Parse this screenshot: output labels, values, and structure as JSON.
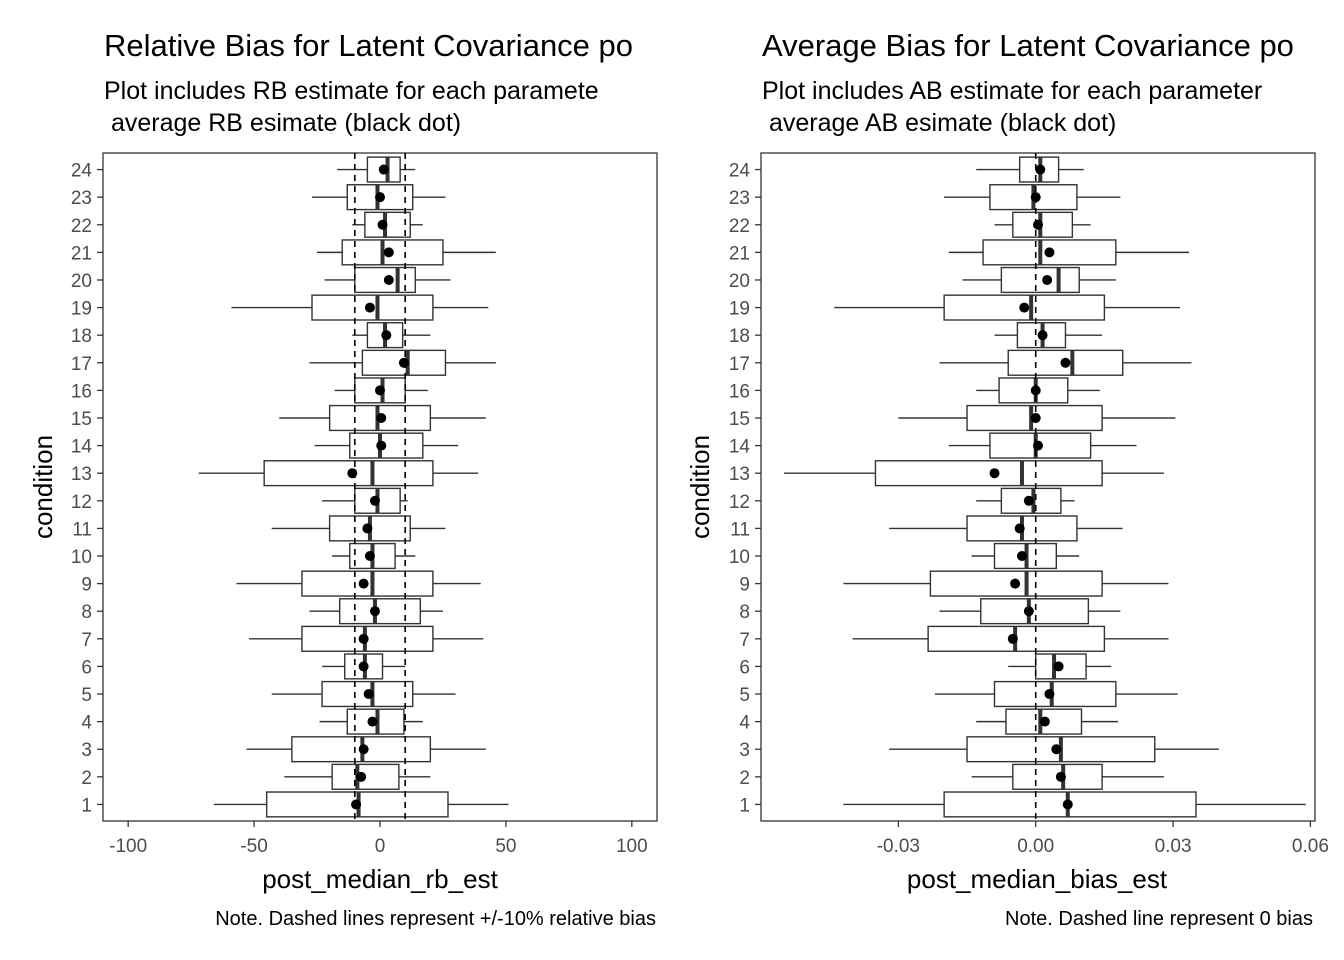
{
  "chart_data": [
    {
      "type": "boxplot",
      "title": "Relative Bias for Latent Covariance po",
      "subtitle_lines": [
        "Plot includes RB estimate for each paramete",
        " average RB esimate (black dot)"
      ],
      "xlabel": "post_median_rb_est",
      "ylabel": "condition",
      "caption": "Note. Dashed lines represent +/-10% relative bias",
      "xlim": [
        -110,
        110
      ],
      "x_ticks": [
        -100,
        -50,
        0,
        50,
        100
      ],
      "x_tick_labels": [
        "-100",
        "-50",
        "0",
        "50",
        "100"
      ],
      "reference_lines": [
        -10,
        10
      ],
      "categories": [
        "1",
        "2",
        "3",
        "4",
        "5",
        "6",
        "7",
        "8",
        "9",
        "10",
        "11",
        "12",
        "13",
        "14",
        "15",
        "16",
        "17",
        "18",
        "19",
        "20",
        "21",
        "22",
        "23",
        "24"
      ],
      "grid": false,
      "legend": "none",
      "boxes": [
        {
          "condition": "1",
          "lower_whisker": -66,
          "q1": -45,
          "median": -8.5,
          "q3": 27,
          "upper_whisker": 51,
          "mean": -9.5
        },
        {
          "condition": "2",
          "lower_whisker": -38,
          "q1": -19,
          "median": -9,
          "q3": 7.5,
          "upper_whisker": 20,
          "mean": -7.5
        },
        {
          "condition": "3",
          "lower_whisker": -53,
          "q1": -35,
          "median": -7,
          "q3": 20,
          "upper_whisker": 42,
          "mean": -6.5
        },
        {
          "condition": "4",
          "lower_whisker": -24,
          "q1": -13,
          "median": -1,
          "q3": 9.5,
          "upper_whisker": 17,
          "mean": -3
        },
        {
          "condition": "5",
          "lower_whisker": -43,
          "q1": -23,
          "median": -3,
          "q3": 13,
          "upper_whisker": 30,
          "mean": -4.5
        },
        {
          "condition": "6",
          "lower_whisker": -23,
          "q1": -14,
          "median": -6,
          "q3": 1,
          "upper_whisker": 10,
          "mean": -6.5
        },
        {
          "condition": "7",
          "lower_whisker": -52,
          "q1": -31,
          "median": -6,
          "q3": 21,
          "upper_whisker": 41,
          "mean": -6.5
        },
        {
          "condition": "8",
          "lower_whisker": -28,
          "q1": -16,
          "median": -2,
          "q3": 16,
          "upper_whisker": 25,
          "mean": -2
        },
        {
          "condition": "9",
          "lower_whisker": -57,
          "q1": -31,
          "median": -3,
          "q3": 21,
          "upper_whisker": 40,
          "mean": -6.5
        },
        {
          "condition": "10",
          "lower_whisker": -19,
          "q1": -12,
          "median": -3,
          "q3": 6,
          "upper_whisker": 14,
          "mean": -4
        },
        {
          "condition": "11",
          "lower_whisker": -43,
          "q1": -20,
          "median": -4,
          "q3": 12,
          "upper_whisker": 26,
          "mean": -5
        },
        {
          "condition": "12",
          "lower_whisker": -23,
          "q1": -10,
          "median": -1,
          "q3": 8,
          "upper_whisker": 11,
          "mean": -2
        },
        {
          "condition": "13",
          "lower_whisker": -72,
          "q1": -46,
          "median": -3,
          "q3": 21,
          "upper_whisker": 39,
          "mean": -11
        },
        {
          "condition": "14",
          "lower_whisker": -26,
          "q1": -12,
          "median": 0,
          "q3": 17,
          "upper_whisker": 31,
          "mean": 0.5
        },
        {
          "condition": "15",
          "lower_whisker": -40,
          "q1": -20,
          "median": -1,
          "q3": 20,
          "upper_whisker": 42,
          "mean": 0.5
        },
        {
          "condition": "16",
          "lower_whisker": -18,
          "q1": -10,
          "median": 1,
          "q3": 10,
          "upper_whisker": 19,
          "mean": 0
        },
        {
          "condition": "17",
          "lower_whisker": -28,
          "q1": -7,
          "median": 11,
          "q3": 26,
          "upper_whisker": 46,
          "mean": 9.5
        },
        {
          "condition": "18",
          "lower_whisker": -11,
          "q1": -5,
          "median": 2,
          "q3": 9,
          "upper_whisker": 20,
          "mean": 2.5
        },
        {
          "condition": "19",
          "lower_whisker": -59,
          "q1": -27,
          "median": -1,
          "q3": 21,
          "upper_whisker": 43,
          "mean": -4
        },
        {
          "condition": "20",
          "lower_whisker": -22,
          "q1": -10,
          "median": 7,
          "q3": 14,
          "upper_whisker": 28,
          "mean": 3.5
        },
        {
          "condition": "21",
          "lower_whisker": -25,
          "q1": -15,
          "median": 1,
          "q3": 25,
          "upper_whisker": 46,
          "mean": 3.5
        },
        {
          "condition": "22",
          "lower_whisker": -11,
          "q1": -6,
          "median": 2,
          "q3": 12,
          "upper_whisker": 17,
          "mean": 1
        },
        {
          "condition": "23",
          "lower_whisker": -27,
          "q1": -13,
          "median": -1,
          "q3": 13,
          "upper_whisker": 26,
          "mean": 0
        },
        {
          "condition": "24",
          "lower_whisker": -17,
          "q1": -5,
          "median": 3,
          "q3": 8,
          "upper_whisker": 14,
          "mean": 1.5
        }
      ]
    },
    {
      "type": "boxplot",
      "title": "Average Bias for Latent Covariance po",
      "subtitle_lines": [
        "Plot includes AB estimate for each parameter",
        " average AB esimate (black dot)"
      ],
      "xlabel": "post_median_bias_est",
      "ylabel": "condition",
      "caption": "Note. Dashed line represent 0 bias",
      "xlim": [
        -0.06,
        0.061
      ],
      "x_ticks": [
        -0.03,
        0.0,
        0.03,
        0.06
      ],
      "x_tick_labels": [
        "-0.03",
        "0.00",
        "0.03",
        "0.06"
      ],
      "reference_lines": [
        0
      ],
      "categories": [
        "1",
        "2",
        "3",
        "4",
        "5",
        "6",
        "7",
        "8",
        "9",
        "10",
        "11",
        "12",
        "13",
        "14",
        "15",
        "16",
        "17",
        "18",
        "19",
        "20",
        "21",
        "22",
        "23",
        "24"
      ],
      "grid": false,
      "legend": "none",
      "boxes": [
        {
          "condition": "1",
          "lower_whisker": -0.042,
          "q1": -0.02,
          "median": 0.007,
          "q3": 0.035,
          "upper_whisker": 0.059,
          "mean": 0.007
        },
        {
          "condition": "2",
          "lower_whisker": -0.014,
          "q1": -0.005,
          "median": 0.006,
          "q3": 0.0145,
          "upper_whisker": 0.028,
          "mean": 0.0055
        },
        {
          "condition": "3",
          "lower_whisker": -0.032,
          "q1": -0.015,
          "median": 0.0055,
          "q3": 0.026,
          "upper_whisker": 0.04,
          "mean": 0.0045
        },
        {
          "condition": "4",
          "lower_whisker": -0.013,
          "q1": -0.0065,
          "median": 0.001,
          "q3": 0.01,
          "upper_whisker": 0.018,
          "mean": 0.002
        },
        {
          "condition": "5",
          "lower_whisker": -0.022,
          "q1": -0.009,
          "median": 0.0035,
          "q3": 0.0175,
          "upper_whisker": 0.031,
          "mean": 0.003
        },
        {
          "condition": "6",
          "lower_whisker": -0.006,
          "q1": 0.0,
          "median": 0.004,
          "q3": 0.011,
          "upper_whisker": 0.0165,
          "mean": 0.005
        },
        {
          "condition": "7",
          "lower_whisker": -0.04,
          "q1": -0.0235,
          "median": -0.0045,
          "q3": 0.015,
          "upper_whisker": 0.029,
          "mean": -0.005
        },
        {
          "condition": "8",
          "lower_whisker": -0.021,
          "q1": -0.012,
          "median": -0.0015,
          "q3": 0.0115,
          "upper_whisker": 0.0185,
          "mean": -0.0015
        },
        {
          "condition": "9",
          "lower_whisker": -0.042,
          "q1": -0.023,
          "median": -0.002,
          "q3": 0.0145,
          "upper_whisker": 0.029,
          "mean": -0.0045
        },
        {
          "condition": "10",
          "lower_whisker": -0.014,
          "q1": -0.009,
          "median": -0.002,
          "q3": 0.0045,
          "upper_whisker": 0.0095,
          "mean": -0.003
        },
        {
          "condition": "11",
          "lower_whisker": -0.032,
          "q1": -0.015,
          "median": -0.003,
          "q3": 0.009,
          "upper_whisker": 0.019,
          "mean": -0.0035
        },
        {
          "condition": "12",
          "lower_whisker": -0.013,
          "q1": -0.0075,
          "median": -0.0005,
          "q3": 0.0055,
          "upper_whisker": 0.0085,
          "mean": -0.0015
        },
        {
          "condition": "13",
          "lower_whisker": -0.055,
          "q1": -0.035,
          "median": -0.003,
          "q3": 0.0145,
          "upper_whisker": 0.028,
          "mean": -0.009
        },
        {
          "condition": "14",
          "lower_whisker": -0.019,
          "q1": -0.01,
          "median": 0.0,
          "q3": 0.012,
          "upper_whisker": 0.022,
          "mean": 0.0005
        },
        {
          "condition": "15",
          "lower_whisker": -0.03,
          "q1": -0.015,
          "median": -0.001,
          "q3": 0.0145,
          "upper_whisker": 0.0305,
          "mean": 0.0
        },
        {
          "condition": "16",
          "lower_whisker": -0.013,
          "q1": -0.008,
          "median": 0.0,
          "q3": 0.007,
          "upper_whisker": 0.014,
          "mean": 0.0
        },
        {
          "condition": "17",
          "lower_whisker": -0.021,
          "q1": -0.006,
          "median": 0.008,
          "q3": 0.019,
          "upper_whisker": 0.034,
          "mean": 0.0065
        },
        {
          "condition": "18",
          "lower_whisker": -0.009,
          "q1": -0.004,
          "median": 0.0015,
          "q3": 0.0065,
          "upper_whisker": 0.0145,
          "mean": 0.0015
        },
        {
          "condition": "19",
          "lower_whisker": -0.044,
          "q1": -0.02,
          "median": -0.001,
          "q3": 0.015,
          "upper_whisker": 0.0315,
          "mean": -0.0025
        },
        {
          "condition": "20",
          "lower_whisker": -0.016,
          "q1": -0.0075,
          "median": 0.005,
          "q3": 0.0095,
          "upper_whisker": 0.0175,
          "mean": 0.0025
        },
        {
          "condition": "21",
          "lower_whisker": -0.019,
          "q1": -0.0115,
          "median": 0.001,
          "q3": 0.0175,
          "upper_whisker": 0.0335,
          "mean": 0.003
        },
        {
          "condition": "22",
          "lower_whisker": -0.009,
          "q1": -0.005,
          "median": 0.001,
          "q3": 0.008,
          "upper_whisker": 0.012,
          "mean": 0.0005
        },
        {
          "condition": "23",
          "lower_whisker": -0.02,
          "q1": -0.01,
          "median": -0.0005,
          "q3": 0.009,
          "upper_whisker": 0.0185,
          "mean": 0.0
        },
        {
          "condition": "24",
          "lower_whisker": -0.013,
          "q1": -0.0035,
          "median": 0.001,
          "q3": 0.005,
          "upper_whisker": 0.0105,
          "mean": 0.001
        }
      ]
    }
  ]
}
